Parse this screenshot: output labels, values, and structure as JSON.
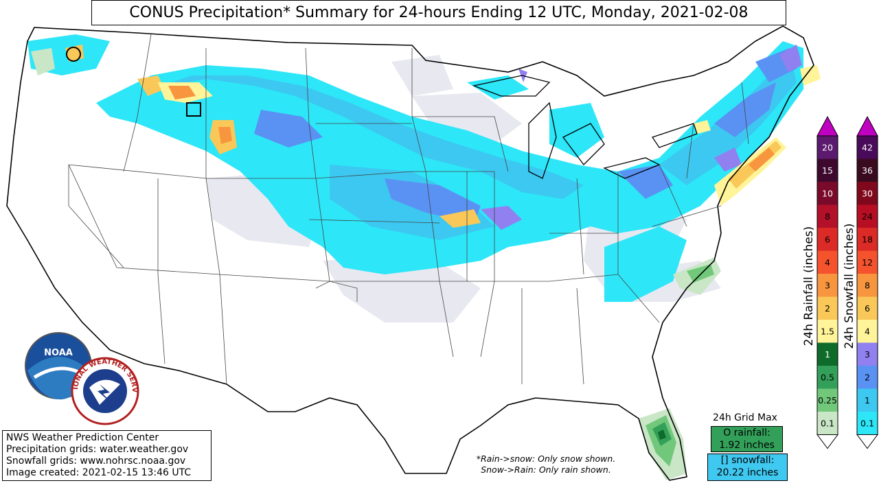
{
  "title": "CONUS Precipitation* Summary for 24-hours Ending 12 UTC, Monday, 2021-02-08",
  "credits": {
    "line1": "NWS Weather Prediction Center",
    "line2": "Precipitation grids: water.weather.gov",
    "line3": "Snowfall grids: www.nohrsc.noaa.gov",
    "line4": "Image created: 2021-02-15 13:46 UTC"
  },
  "logos": {
    "noaa": "NOAA",
    "nws": "NATIONAL WEATHER SERVICE"
  },
  "note": {
    "line1": "*Rain->snow: Only snow shown.",
    "line2": "Snow->Rain: Only rain shown."
  },
  "grid_max": {
    "title": "24h Grid Max",
    "rain_label": "O rainfall:",
    "rain_value": "1.92 inches",
    "snow_label": "[] snowfall:",
    "snow_value": "20.22 inches"
  },
  "rain_scale": {
    "label": "24h Rainfall (inches)",
    "ticks": [
      "20",
      "15",
      "10",
      "8",
      "6",
      "4",
      "3",
      "2",
      "1.5",
      "1",
      "0.5",
      "0.25",
      "0.1"
    ],
    "colors": [
      "#5c1a6e",
      "#3d0a2e",
      "#7a0a2a",
      "#b3102a",
      "#dc2a26",
      "#f4532d",
      "#f8953f",
      "#fac858",
      "#fff499",
      "#0e6b2a",
      "#33a05a",
      "#71c87a",
      "#c9e6c6"
    ]
  },
  "snow_scale": {
    "label": "24h Snowfall (inches)",
    "ticks": [
      "42",
      "36",
      "30",
      "24",
      "18",
      "12",
      "8",
      "6",
      "4",
      "3",
      "2",
      "1",
      "0.1"
    ],
    "colors": [
      "#4a0a5a",
      "#3a0a1e",
      "#80081c",
      "#b80e23",
      "#dc2a26",
      "#f4532d",
      "#f8953f",
      "#fac858",
      "#fff499",
      "#9080f0",
      "#5a92f4",
      "#3cc8f0",
      "#2de6f8"
    ]
  },
  "map_colors": {
    "trace": "#e8e8f0",
    "snow_light": "#2de6f8",
    "snow_mid": "#3cc8f0",
    "snow_2": "#5a92f4",
    "snow_3": "#9080f0",
    "snow_4": "#fff499",
    "snow_6": "#fac858",
    "snow_8": "#f8953f",
    "rain_025": "#71c87a",
    "rain_05": "#33a05a",
    "rain_1": "#0e6b2a"
  }
}
